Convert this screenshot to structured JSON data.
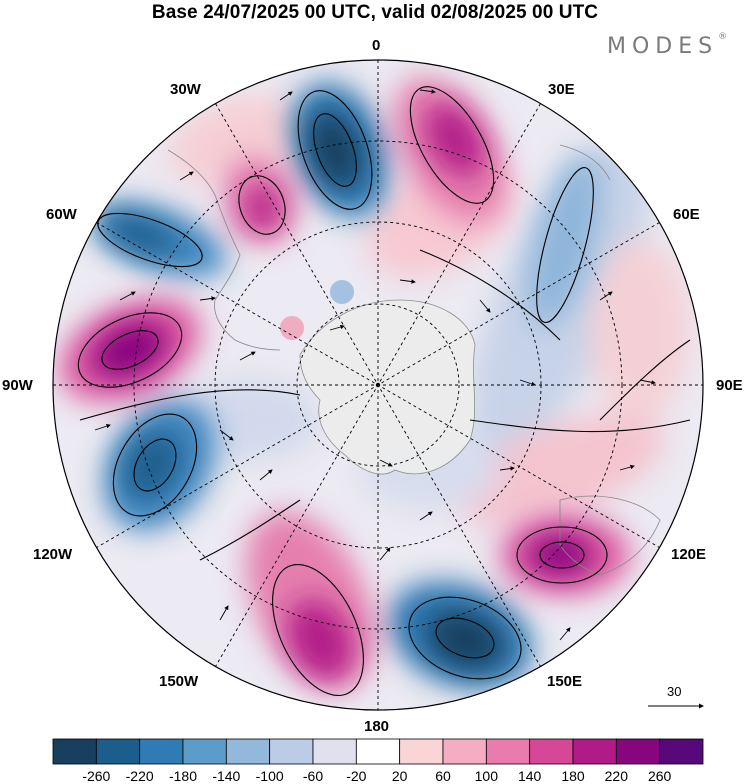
{
  "title": "Base 24/07/2025 00 UTC, valid 02/08/2025 00 UTC",
  "brand": "MODES",
  "brand_mark": "®",
  "longitude_labels": {
    "lon_0": "0",
    "lon_30e": "30E",
    "lon_60e": "60E",
    "lon_90e": "90E",
    "lon_120e": "120E",
    "lon_150e": "150E",
    "lon_180": "180",
    "lon_150w": "150W",
    "lon_120w": "120W",
    "lon_90w": "90W",
    "lon_60w": "60W",
    "lon_30w": "30W"
  },
  "reference_vector": "30",
  "colorbar": {
    "ticks": [
      "-260",
      "-220",
      "-180",
      "-140",
      "-100",
      "-60",
      "-20",
      "20",
      "60",
      "100",
      "140",
      "180",
      "220",
      "260"
    ],
    "colors": [
      "#17405f",
      "#1b5d8c",
      "#2f7bb4",
      "#5c9ccb",
      "#92b8dc",
      "#bccce6",
      "#e1e0ef",
      "#ffffff",
      "#f9d5d6",
      "#f4adc2",
      "#ea7cad",
      "#d64797",
      "#b21a88",
      "#87067e",
      "#57097a"
    ]
  }
}
